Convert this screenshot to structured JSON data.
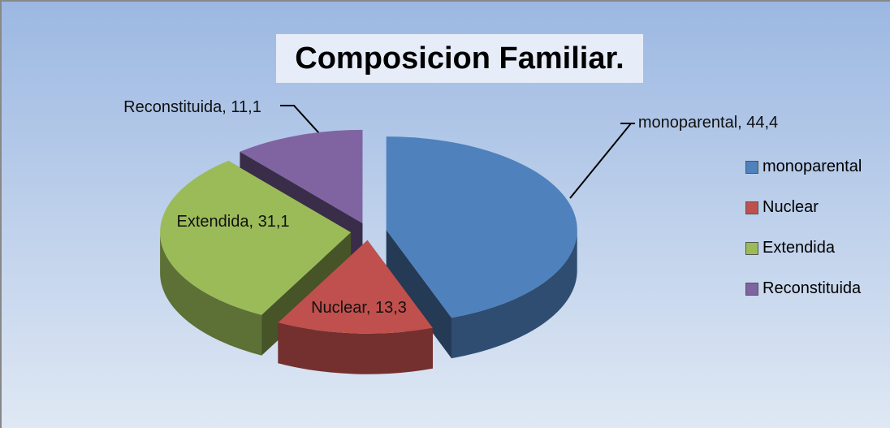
{
  "chart_data": {
    "type": "pie3d",
    "title": "Composicion Familiar.",
    "categories": [
      "monoparental",
      "Nuclear",
      "Extendida",
      "Reconstituida"
    ],
    "values": [
      44.4,
      13.3,
      31.1,
      11.1
    ],
    "value_labels": [
      "monoparental, 44,4",
      "Nuclear, 13,3",
      "Extendida, 31,1",
      "Reconstituida, 11,1"
    ],
    "colors": [
      "#4f81bd",
      "#c0504d",
      "#9bbb59",
      "#8064a2"
    ],
    "legend": "right"
  }
}
